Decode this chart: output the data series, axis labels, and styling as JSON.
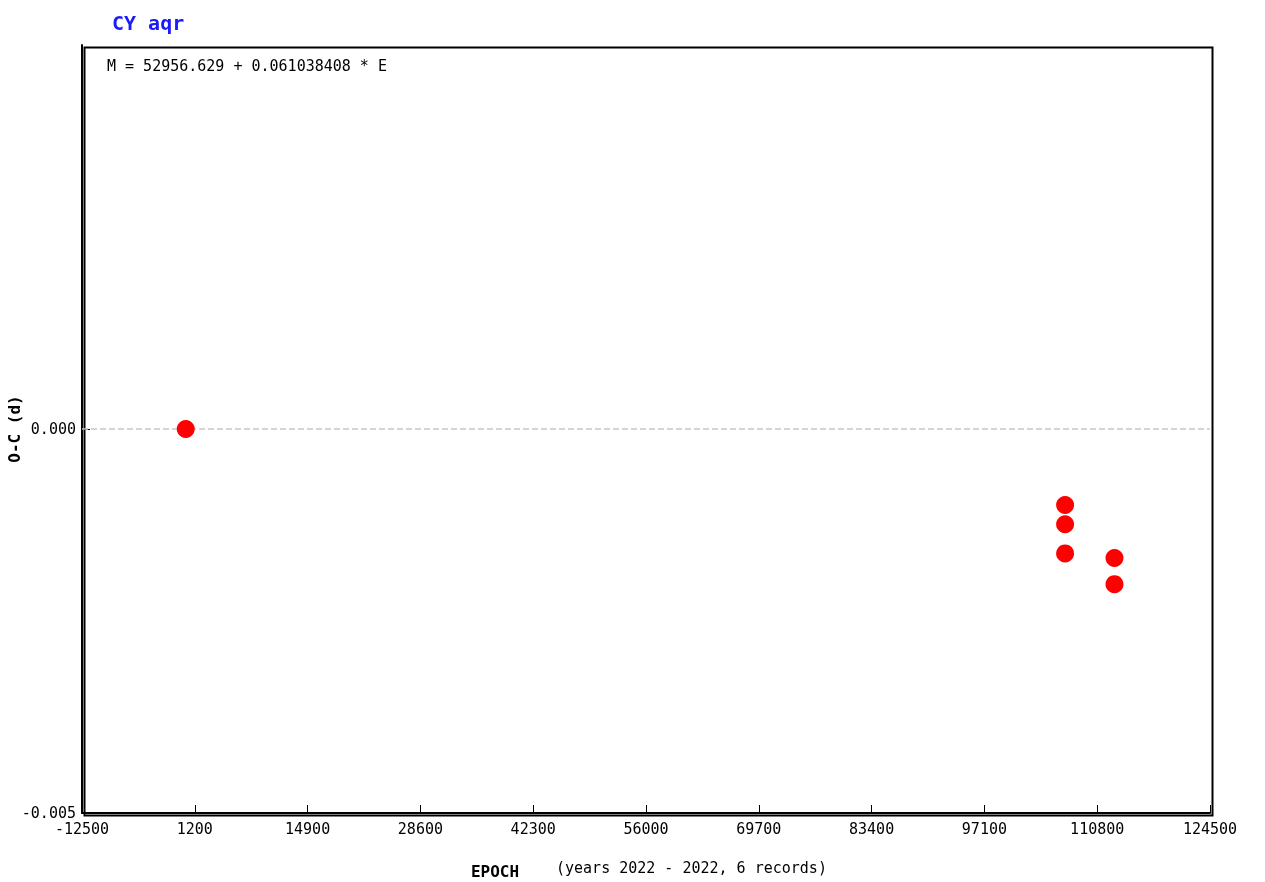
{
  "chart_data": {
    "type": "scatter",
    "title": "CY aqr",
    "xlabel": "EPOCH",
    "ylabel": "O-C (d)",
    "annotations": [
      "M = 52956.629 + 0.061038408 * E",
      "(years 2022 - 2022, 6 records)"
    ],
    "x": [
      100,
      106900,
      106900,
      106900,
      112900,
      112900
    ],
    "series": [
      {
        "color": "#ff0000",
        "values": [
          0,
          -0.00099,
          -0.00124,
          -0.00162,
          -0.00168,
          -0.00202
        ]
      }
    ],
    "xlim": [
      -12500,
      124500
    ],
    "xticks": [
      -12500,
      1200,
      14900,
      28600,
      42300,
      56000,
      69700,
      83400,
      97100,
      110800,
      124500
    ],
    "ylim": [
      -0.005,
      0.005
    ],
    "yticks": [
      {
        "value": -0.005,
        "label": "-0.005"
      },
      {
        "value": 0,
        "label": "0.000"
      }
    ],
    "ref_lines": [
      {
        "axis": "y",
        "value": 0,
        "color": "#c8c8c8",
        "line_style": "dashed"
      }
    ],
    "marker": "circle"
  }
}
